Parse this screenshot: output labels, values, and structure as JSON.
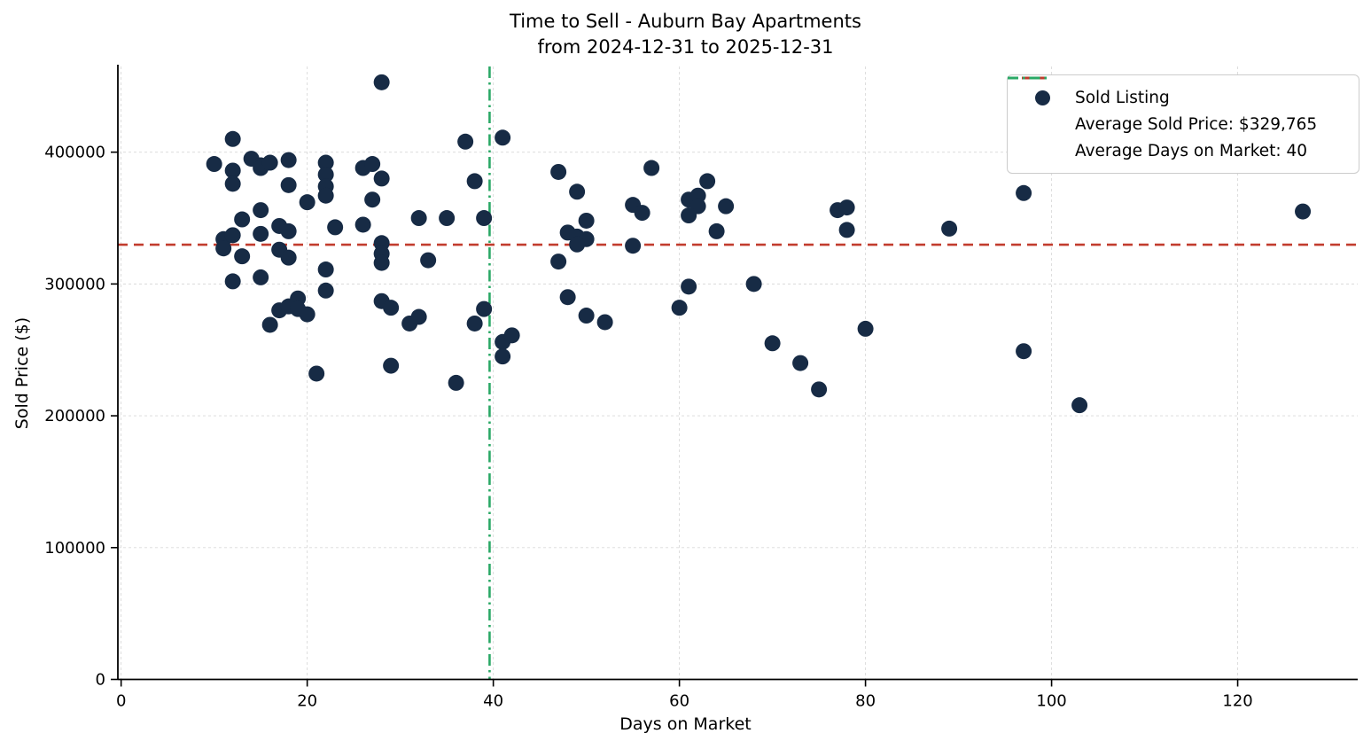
{
  "chart_data": {
    "type": "scatter",
    "title": "Time to Sell - Auburn Bay Apartments",
    "subtitle": "from 2024-12-31 to 2025-12-31",
    "xlabel": "Days on Market",
    "ylabel": "Sold Price ($)",
    "xlim": [
      -0.35,
      132.9
    ],
    "ylim": [
      0,
      465000
    ],
    "x_ticks": [
      0,
      20,
      40,
      60,
      80,
      100,
      120
    ],
    "x_tick_labels": [
      "0",
      "20",
      "40",
      "60",
      "80",
      "100",
      "120"
    ],
    "y_ticks": [
      0,
      100000,
      200000,
      300000,
      400000
    ],
    "y_tick_labels": [
      "0",
      "100000",
      "200000",
      "300000",
      "400000"
    ],
    "grid": true,
    "legend_position": "upper right",
    "average_sold_price": 329765,
    "average_days_on_market": 40,
    "avg_days_line_x": 39.6,
    "colors": {
      "dot": "#172b45",
      "avg_price_line": "#c23c2e",
      "avg_days_line": "#2aa865",
      "grid": "#d9d9d9",
      "axis": "#000000"
    },
    "legend": {
      "sold_listing_label": "Sold Listing",
      "avg_price_label": "Average Sold Price: $329,765",
      "avg_days_label": "Average Days on Market: 40"
    },
    "series": [
      {
        "name": "Sold Listing",
        "points": [
          [
            10,
            391000
          ],
          [
            12,
            410000
          ],
          [
            12,
            386000
          ],
          [
            12,
            376000
          ],
          [
            13,
            349000
          ],
          [
            11,
            334000
          ],
          [
            12,
            337000
          ],
          [
            11,
            327000
          ],
          [
            13,
            321000
          ],
          [
            12,
            302000
          ],
          [
            14,
            395000
          ],
          [
            15,
            390000
          ],
          [
            15,
            388000
          ],
          [
            16,
            392000
          ],
          [
            15,
            356000
          ],
          [
            15,
            338000
          ],
          [
            15,
            305000
          ],
          [
            16,
            269000
          ],
          [
            17,
            344000
          ],
          [
            18,
            340000
          ],
          [
            17,
            326000
          ],
          [
            18,
            320000
          ],
          [
            18,
            394000
          ],
          [
            18,
            375000
          ],
          [
            17,
            280000
          ],
          [
            18,
            283000
          ],
          [
            19,
            289000
          ],
          [
            19,
            281000
          ],
          [
            20,
            277000
          ],
          [
            20,
            362000
          ],
          [
            21,
            232000
          ],
          [
            22,
            392000
          ],
          [
            22,
            383000
          ],
          [
            22,
            374000
          ],
          [
            22,
            367000
          ],
          [
            22,
            311000
          ],
          [
            22,
            295000
          ],
          [
            23,
            343000
          ],
          [
            26,
            388000
          ],
          [
            27,
            391000
          ],
          [
            28,
            380000
          ],
          [
            27,
            364000
          ],
          [
            26,
            345000
          ],
          [
            28,
            453000
          ],
          [
            28,
            331000
          ],
          [
            28,
            323000
          ],
          [
            28,
            316000
          ],
          [
            28,
            287000
          ],
          [
            29,
            282000
          ],
          [
            29,
            238000
          ],
          [
            31,
            270000
          ],
          [
            32,
            275000
          ],
          [
            32,
            350000
          ],
          [
            33,
            318000
          ],
          [
            35,
            350000
          ],
          [
            36,
            225000
          ],
          [
            37,
            408000
          ],
          [
            39,
            350000
          ],
          [
            38,
            378000
          ],
          [
            38,
            270000
          ],
          [
            39,
            281000
          ],
          [
            41,
            411000
          ],
          [
            41,
            256000
          ],
          [
            42,
            261000
          ],
          [
            41,
            245000
          ],
          [
            47,
            385000
          ],
          [
            49,
            370000
          ],
          [
            48,
            339000
          ],
          [
            49,
            336000
          ],
          [
            50,
            334000
          ],
          [
            49,
            330000
          ],
          [
            50,
            348000
          ],
          [
            47,
            317000
          ],
          [
            48,
            290000
          ],
          [
            50,
            276000
          ],
          [
            52,
            271000
          ],
          [
            55,
            360000
          ],
          [
            56,
            354000
          ],
          [
            57,
            388000
          ],
          [
            55,
            329000
          ],
          [
            61,
            364000
          ],
          [
            62,
            367000
          ],
          [
            62,
            359000
          ],
          [
            61,
            352000
          ],
          [
            63,
            378000
          ],
          [
            65,
            359000
          ],
          [
            64,
            340000
          ],
          [
            60,
            282000
          ],
          [
            61,
            298000
          ],
          [
            68,
            300000
          ],
          [
            70,
            255000
          ],
          [
            73,
            240000
          ],
          [
            75,
            220000
          ],
          [
            77,
            356000
          ],
          [
            78,
            358000
          ],
          [
            78,
            341000
          ],
          [
            80,
            266000
          ],
          [
            89,
            342000
          ],
          [
            97,
            369000
          ],
          [
            97,
            249000
          ],
          [
            103,
            208000
          ],
          [
            127,
            355000
          ]
        ]
      }
    ]
  }
}
